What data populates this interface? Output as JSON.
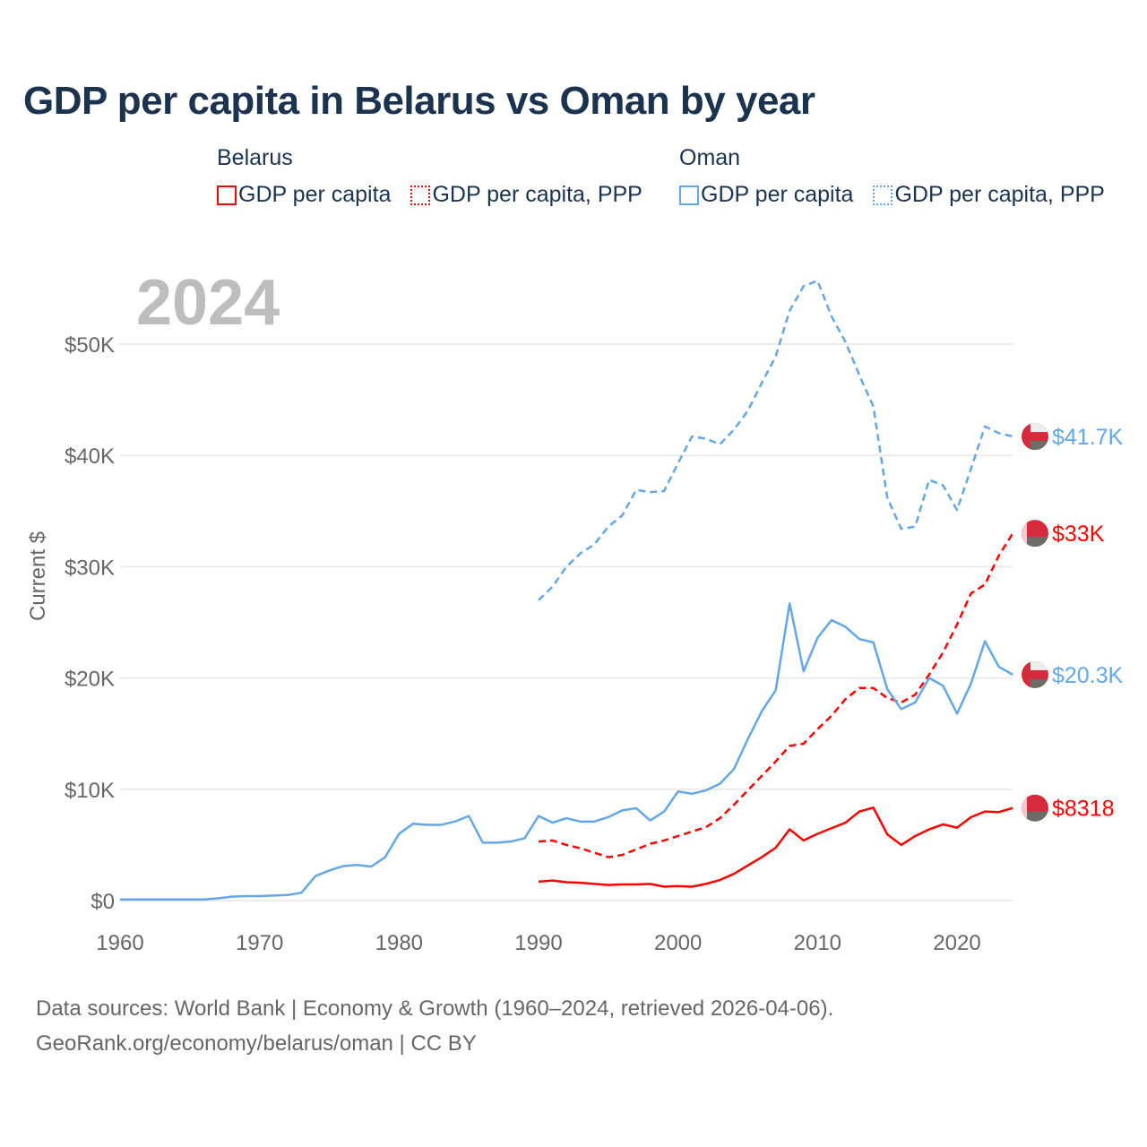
{
  "title": "GDP per capita in Belarus vs Oman by year",
  "legend": [
    {
      "country": "Belarus",
      "items": [
        {
          "label": "GDP per capita",
          "color": "#ff0000",
          "style": "solid"
        },
        {
          "label": "GDP per capita, PPP",
          "color": "#ff0000",
          "style": "dotted"
        }
      ]
    },
    {
      "country": "Oman",
      "items": [
        {
          "label": "GDP per capita",
          "color": "#63a7e8",
          "style": "solid"
        },
        {
          "label": "GDP per capita, PPP",
          "color": "#63a7e8",
          "style": "dotted"
        }
      ]
    }
  ],
  "year_label": "2024",
  "footer": {
    "line1": "Data sources: World Bank | Economy & Growth (1960–2024, retrieved 2026-04-06).",
    "line2": "GeoRank.org/economy/belarus/oman | CC BY"
  },
  "chart_data": {
    "type": "line",
    "title": "GDP per capita in Belarus vs Oman by year",
    "xlabel": "",
    "ylabel": "Current $",
    "xlim": [
      1960,
      2024
    ],
    "ylim": [
      0,
      57000
    ],
    "grid": true,
    "legend_position": "top",
    "x_ticks": [
      1960,
      1970,
      1980,
      1990,
      2000,
      2010,
      2020
    ],
    "y_ticks": [
      {
        "v": 0,
        "label": "$0"
      },
      {
        "v": 10000,
        "label": "$10K"
      },
      {
        "v": 20000,
        "label": "$20K"
      },
      {
        "v": 30000,
        "label": "$30K"
      },
      {
        "v": 40000,
        "label": "$40K"
      },
      {
        "v": 50000,
        "label": "$50K"
      }
    ],
    "series": [
      {
        "name": "Oman GDP per capita, PPP",
        "country": "Oman",
        "color": "#63a7e8",
        "dashed": true,
        "start": 1990,
        "end_label": "$41.7K",
        "values": [
          27.0,
          28.2,
          30.0,
          31.2,
          32.0,
          33.6,
          34.6,
          36.9,
          36.7,
          36.8,
          39.3,
          41.7,
          41.5,
          41.0,
          42.3,
          44.0,
          46.5,
          48.9,
          53.0,
          55.2,
          55.7,
          52.5,
          50.2,
          47.2,
          44.4,
          36.2,
          33.4,
          33.6,
          37.8,
          37.3,
          35.1,
          38.8,
          42.6,
          42.0,
          41.7
        ]
      },
      {
        "name": "Belarus GDP per capita, PPP",
        "country": "Belarus",
        "color": "#ff0000",
        "dashed": true,
        "start": 1990,
        "end_label": "$33K",
        "values": [
          5.3,
          5.4,
          5.0,
          4.7,
          4.3,
          3.9,
          4.1,
          4.6,
          5.1,
          5.4,
          5.8,
          6.2,
          6.6,
          7.4,
          8.6,
          9.9,
          11.2,
          12.5,
          13.9,
          14.1,
          15.4,
          16.6,
          18.1,
          19.1,
          19.1,
          18.2,
          17.8,
          18.5,
          20.3,
          22.3,
          24.8,
          27.6,
          28.4,
          31.0,
          33.0
        ]
      },
      {
        "name": "Oman GDP per capita",
        "country": "Oman",
        "color": "#63a7e8",
        "dashed": false,
        "start": 1960,
        "end_label": "$20.3K",
        "values": [
          0.1,
          0.1,
          0.1,
          0.1,
          0.1,
          0.1,
          0.1,
          0.2,
          0.35,
          0.4,
          0.4,
          0.45,
          0.5,
          0.7,
          2.2,
          2.7,
          3.1,
          3.2,
          3.05,
          3.9,
          6.0,
          6.9,
          6.8,
          6.8,
          7.1,
          7.6,
          5.2,
          5.2,
          5.3,
          5.6,
          7.6,
          7.0,
          7.4,
          7.1,
          7.1,
          7.5,
          8.1,
          8.3,
          7.2,
          8.0,
          9.8,
          9.6,
          9.9,
          10.5,
          11.8,
          14.5,
          17.0,
          18.9,
          26.7,
          20.6,
          23.6,
          25.2,
          24.6,
          23.5,
          23.2,
          19.0,
          17.2,
          17.8,
          20.0,
          19.3,
          16.8,
          19.5,
          23.3,
          21.0,
          20.3
        ]
      },
      {
        "name": "Belarus GDP per capita",
        "country": "Belarus",
        "color": "#ff0000",
        "dashed": false,
        "start": 1990,
        "end_label": "$8318",
        "values": [
          1.7,
          1.8,
          1.65,
          1.6,
          1.5,
          1.4,
          1.45,
          1.45,
          1.5,
          1.25,
          1.3,
          1.25,
          1.5,
          1.85,
          2.4,
          3.15,
          3.9,
          4.75,
          6.4,
          5.4,
          6.0,
          6.5,
          7.0,
          8.0,
          8.35,
          5.95,
          5.0,
          5.8,
          6.4,
          6.85,
          6.55,
          7.5,
          8.0,
          7.95,
          8.318
        ]
      }
    ],
    "value_unit": "thousand USD"
  }
}
